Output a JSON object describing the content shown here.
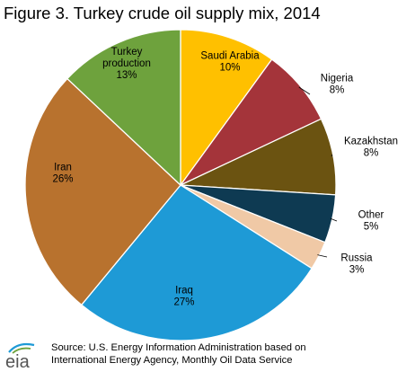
{
  "title": "Figure 3. Turkey crude oil supply mix, 2014",
  "logo_text": "eia",
  "source": {
    "line1": "Source: U.S. Energy Information Administration based on",
    "line2": "International Energy Agency, Monthly  Oil Data Service"
  },
  "chart_data": {
    "type": "pie",
    "title": "Figure 3. Turkey crude oil supply mix, 2014",
    "slices": [
      {
        "label": [
          "Saudi Arabia"
        ],
        "value": 10,
        "pct_label": "10%",
        "color": "#ffc000"
      },
      {
        "label": [
          "Nigeria"
        ],
        "value": 8,
        "pct_label": "8%",
        "color": "#a4343a"
      },
      {
        "label": [
          "Kazakhstan"
        ],
        "value": 8,
        "pct_label": "8%",
        "color": "#6b5311"
      },
      {
        "label": [
          "Other"
        ],
        "value": 5,
        "pct_label": "5%",
        "color": "#0e3a52"
      },
      {
        "label": [
          "Russia"
        ],
        "value": 3,
        "pct_label": "3%",
        "color": "#f0c9a6"
      },
      {
        "label": [
          "Iraq"
        ],
        "value": 27,
        "pct_label": "27%",
        "color": "#1e9ad6"
      },
      {
        "label": [
          "Iran"
        ],
        "value": 26,
        "pct_label": "26%",
        "color": "#b8722e"
      },
      {
        "label": [
          "Turkey",
          "production"
        ],
        "value": 13,
        "pct_label": "13%",
        "color": "#6ea23d"
      }
    ]
  }
}
